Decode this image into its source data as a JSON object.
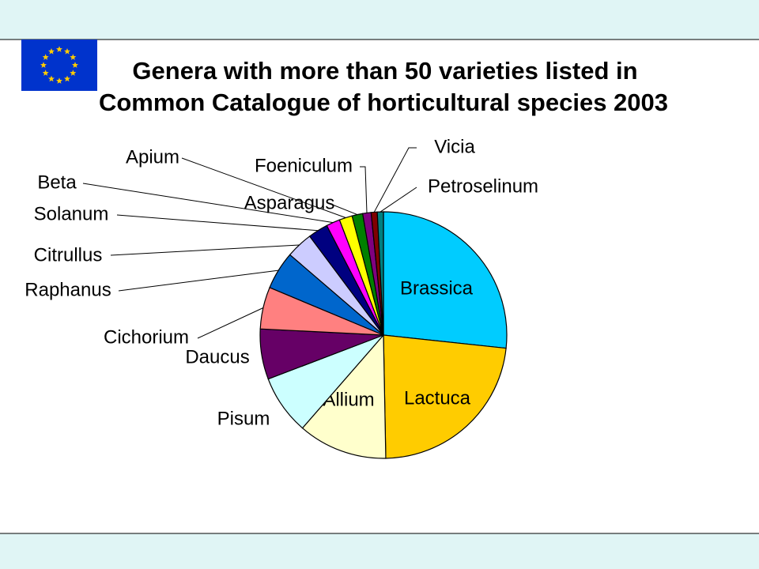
{
  "chart_data": {
    "type": "pie",
    "title": [
      "Genera with more than 50 varieties listed in",
      "Common Catalogue of horticultural species 2003"
    ],
    "categories": [
      "Brassica",
      "Lactuca",
      "Allium",
      "Pisum",
      "Daucus",
      "Cichorium",
      "Raphanus",
      "Citrullus",
      "Solanum",
      "Beta",
      "Apium",
      "Asparagus",
      "Foeniculum",
      "Vicia",
      "Petroselinum"
    ],
    "values": [
      26.7,
      23,
      11.7,
      7.8,
      6.6,
      5.5,
      5,
      3.5,
      2.6,
      1.8,
      1.7,
      1.4,
      1.1,
      0.8,
      0.8
    ],
    "colors": [
      "#00ccff",
      "#ffcc00",
      "#ffffcc",
      "#ccffff",
      "#660066",
      "#ff8080",
      "#0066cc",
      "#ccccff",
      "#000080",
      "#ff00ff",
      "#ffff00",
      "#008000",
      "#800080",
      "#800000",
      "#008080"
    ]
  }
}
